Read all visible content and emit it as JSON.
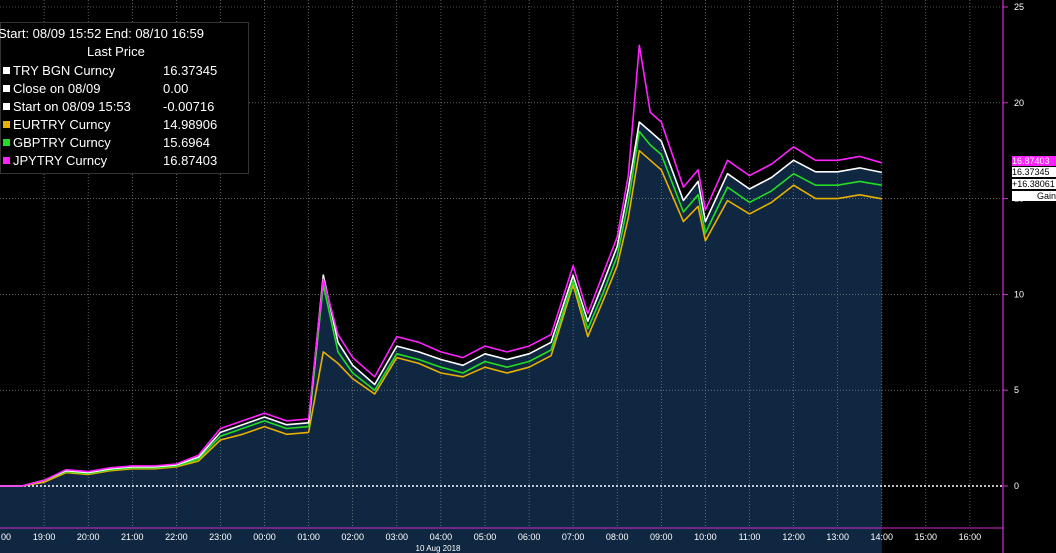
{
  "legend": {
    "range": "Start: 08/09 15:52 End: 08/10 16:59",
    "header": "Last Price",
    "rows": [
      {
        "name": "TRY BGN Curncy",
        "value": "16.37345",
        "color": "#ffffff"
      },
      {
        "name": "Close on 08/09",
        "value": "0.00",
        "color": "#ffffff"
      },
      {
        "name": "Start on 08/09 15:53",
        "value": "-0.00716",
        "color": "#ffffff"
      },
      {
        "name": "EURTRY Curncy",
        "value": "14.98906",
        "color": "#e8b000"
      },
      {
        "name": "GBPTRY Curncy",
        "value": "15.6964",
        "color": "#22dd22"
      },
      {
        "name": "JPYTRY Curncy",
        "value": "16.87403",
        "color": "#ff22ff"
      }
    ]
  },
  "price_tags": {
    "jpy": "16.87403",
    "try": "16.37345",
    "gain": "+16.38061",
    "gain_label": "Gain"
  },
  "colors": {
    "background": "#000000",
    "area": "#0f2740",
    "grid": "#9a9a9a",
    "axis": "#d22ad2",
    "text": "#ffffff"
  },
  "chart_data": {
    "type": "line",
    "ylim": [
      -2,
      25
    ],
    "xlim": [
      "08/09 18:00",
      "08/10 16:45"
    ],
    "y_ticks": [
      0,
      5,
      10,
      15,
      20,
      25
    ],
    "x_ticks": [
      "00",
      "19:00",
      "20:00",
      "21:00",
      "22:00",
      "23:00",
      "00:00",
      "01:00",
      "02:00",
      "03:00",
      "04:00",
      "05:00",
      "06:00",
      "07:00",
      "08:00",
      "09:00",
      "10:00",
      "11:00",
      "12:00",
      "13:00",
      "14:00",
      "15:00",
      "16:00"
    ],
    "date_label": "10 Aug 2018",
    "grid": true,
    "legend_position": "top-left",
    "x": [
      "08/09 18:00",
      "08/09 18:30",
      "08/09 19:00",
      "08/09 19:30",
      "08/09 20:00",
      "08/09 20:30",
      "08/09 21:00",
      "08/09 21:30",
      "08/09 22:00",
      "08/09 22:30",
      "08/09 23:00",
      "08/09 23:30",
      "08/10 00:00",
      "08/10 00:30",
      "08/10 01:00",
      "08/10 01:20",
      "08/10 01:40",
      "08/10 02:00",
      "08/10 02:30",
      "08/10 03:00",
      "08/10 03:30",
      "08/10 04:00",
      "08/10 04:30",
      "08/10 05:00",
      "08/10 05:30",
      "08/10 06:00",
      "08/10 06:30",
      "08/10 07:00",
      "08/10 07:20",
      "08/10 07:40",
      "08/10 08:00",
      "08/10 08:15",
      "08/10 08:30",
      "08/10 08:45",
      "08/10 09:00",
      "08/10 09:30",
      "08/10 09:50",
      "08/10 10:00",
      "08/10 10:30",
      "08/10 11:00",
      "08/10 11:30",
      "08/10 12:00",
      "08/10 12:30",
      "08/10 13:00",
      "08/10 13:30",
      "08/10 14:00"
    ],
    "series": [
      {
        "name": "TRY BGN Curncy",
        "color": "#ffffff",
        "values": [
          0,
          0,
          0.3,
          0.8,
          0.7,
          0.9,
          1.0,
          1.0,
          1.1,
          1.5,
          2.8,
          3.2,
          3.6,
          3.2,
          3.3,
          11.0,
          7.5,
          6.3,
          5.3,
          7.3,
          7.0,
          6.6,
          6.3,
          6.9,
          6.6,
          6.9,
          7.5,
          11.0,
          8.6,
          10.5,
          12.5,
          15.5,
          19.0,
          18.5,
          18.0,
          14.9,
          15.9,
          13.8,
          16.3,
          15.5,
          16.1,
          17.0,
          16.4,
          16.4,
          16.6,
          16.37
        ]
      },
      {
        "name": "EURTRY Curncy",
        "color": "#e8b000",
        "values": [
          0,
          0,
          0.2,
          0.7,
          0.6,
          0.8,
          0.9,
          0.9,
          1.0,
          1.3,
          2.4,
          2.7,
          3.1,
          2.7,
          2.8,
          7.0,
          6.4,
          5.6,
          4.8,
          6.7,
          6.4,
          5.9,
          5.7,
          6.2,
          5.9,
          6.2,
          6.8,
          10.5,
          7.8,
          9.6,
          11.5,
          14.0,
          17.5,
          17.0,
          16.5,
          13.8,
          14.6,
          12.8,
          14.9,
          14.2,
          14.8,
          15.7,
          15.0,
          15.0,
          15.2,
          14.99
        ]
      },
      {
        "name": "GBPTRY Curncy",
        "color": "#22dd22",
        "values": [
          0,
          0,
          0.3,
          0.75,
          0.65,
          0.85,
          0.95,
          0.95,
          1.05,
          1.4,
          2.6,
          3.0,
          3.4,
          3.0,
          3.1,
          10.5,
          7.0,
          5.9,
          5.0,
          6.9,
          6.6,
          6.2,
          5.9,
          6.5,
          6.2,
          6.5,
          7.1,
          10.7,
          8.2,
          10.0,
          12.0,
          14.8,
          18.5,
          17.8,
          17.3,
          14.3,
          15.2,
          13.2,
          15.6,
          14.8,
          15.4,
          16.3,
          15.7,
          15.7,
          15.9,
          15.7
        ]
      },
      {
        "name": "JPYTRY Curncy",
        "color": "#ff22ff",
        "values": [
          0,
          0,
          0.3,
          0.85,
          0.75,
          0.95,
          1.05,
          1.05,
          1.15,
          1.6,
          3.0,
          3.4,
          3.8,
          3.4,
          3.5,
          10.8,
          7.9,
          6.7,
          5.7,
          7.8,
          7.5,
          7.0,
          6.7,
          7.3,
          7.0,
          7.3,
          7.9,
          11.5,
          9.0,
          11.0,
          13.0,
          16.2,
          23.0,
          19.5,
          19.0,
          15.6,
          16.5,
          14.4,
          17.0,
          16.2,
          16.8,
          17.7,
          17.0,
          17.0,
          17.2,
          16.87
        ]
      }
    ]
  }
}
